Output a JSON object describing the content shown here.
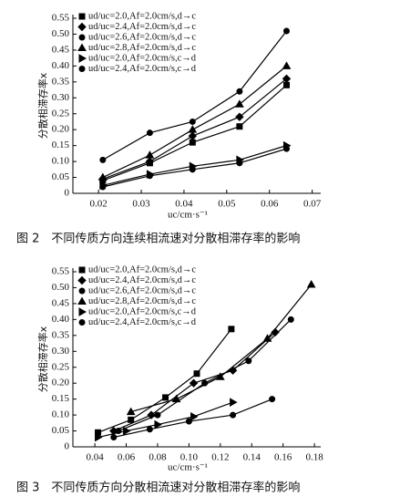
{
  "chart_data": [
    {
      "type": "line",
      "caption": "图 2　不同传质方向连续相流速对分散相滞存率的影响",
      "xlabel": "uc/cm·s⁻¹",
      "ylabel": "分散相滞存率x",
      "xlim": [
        0.014,
        0.072
      ],
      "xticks": [
        0.02,
        0.03,
        0.04,
        0.05,
        0.06,
        0.07
      ],
      "ylim": [
        0,
        0.55
      ],
      "yticks": [
        0,
        0.05,
        {
          "value": 0.1,
          "label": "0.10"
        },
        0.15,
        {
          "value": 0.2,
          "label": "0.20"
        },
        0.25,
        {
          "value": 0.3,
          "label": "0.30"
        },
        0.35,
        {
          "value": 0.4,
          "label": "0.40"
        },
        0.45,
        {
          "value": 0.5,
          "label": "0.50"
        },
        0.55
      ],
      "legend": "upper left",
      "x": [
        0.021,
        0.032,
        0.042,
        0.053,
        0.064
      ],
      "series": [
        {
          "name": "ud/uc=2.0,Af=2.0cm/s,d→c",
          "color": "#000000",
          "marker": "square",
          "values": [
            0.04,
            0.095,
            0.16,
            0.21,
            0.34
          ]
        },
        {
          "name": "ud/uc=2.4,Af=2.0cm/s,d→c",
          "color": "#000000",
          "marker": "diamond",
          "values": [
            0.045,
            0.1,
            0.18,
            0.24,
            0.36
          ]
        },
        {
          "name": "ud/uc=2.6,Af=2.0cm/s,d→c",
          "color": "#000000",
          "marker": "circle",
          "values": [
            0.105,
            0.19,
            0.225,
            0.32,
            0.51
          ]
        },
        {
          "name": "ud/uc=2.8,Af=2.0cm/s,d→c",
          "color": "#000000",
          "marker": "triangle",
          "values": [
            0.05,
            0.12,
            0.2,
            0.28,
            0.4
          ]
        },
        {
          "name": "ud/uc=2.0,Af=2.0cm/s,c→d",
          "color": "#000000",
          "marker": "right-triangle",
          "values": [
            0.025,
            0.06,
            0.085,
            0.105,
            0.15
          ]
        },
        {
          "name": "ud/uc=2.4,Af=2.0cm/s,c→d",
          "color": "#000000",
          "marker": "circle",
          "values": [
            0.02,
            0.055,
            0.075,
            0.095,
            0.14
          ]
        }
      ]
    },
    {
      "type": "line",
      "caption": "图 3　不同传质方向分散相流速对分散相滞存率的影响",
      "xlabel": "uc/cm·s⁻¹",
      "ylabel": "分散相滞存率x",
      "xlim": [
        0.026,
        0.184
      ],
      "xticks": [
        0.04,
        0.06,
        0.08,
        {
          "value": 0.1,
          "label": "0.10"
        },
        0.12,
        0.14,
        0.16,
        0.18
      ],
      "ylim": [
        0,
        0.55
      ],
      "yticks": [
        0,
        0.05,
        {
          "value": 0.1,
          "label": "0.10"
        },
        0.15,
        {
          "value": 0.2,
          "label": "0.20"
        },
        0.25,
        {
          "value": 0.3,
          "label": "0.30"
        },
        0.35,
        {
          "value": 0.4,
          "label": "0.40"
        },
        0.45,
        {
          "value": 0.5,
          "label": "0.50"
        },
        0.55
      ],
      "legend": "upper left",
      "series": [
        {
          "name": "ud/uc=2.0,Af=2.0cm/s,d→c",
          "color": "#000000",
          "marker": "square",
          "x": [
            0.042,
            0.063,
            0.085,
            0.105,
            0.127
          ],
          "values": [
            0.045,
            0.085,
            0.155,
            0.23,
            0.37
          ]
        },
        {
          "name": "ud/uc=2.4,Af=2.0cm/s,d→c",
          "color": "#000000",
          "marker": "diamond",
          "x": [
            0.052,
            0.076,
            0.103,
            0.128,
            0.155
          ],
          "values": [
            0.05,
            0.1,
            0.2,
            0.24,
            0.36
          ]
        },
        {
          "name": "ud/uc=2.6,Af=2.0cm/s,d→c",
          "color": "#000000",
          "marker": "circle",
          "x": [
            0.055,
            0.08,
            0.11,
            0.138,
            0.165
          ],
          "values": [
            0.05,
            0.1,
            0.2,
            0.27,
            0.4
          ]
        },
        {
          "name": "ud/uc=2.8,Af=2.0cm/s,d→c",
          "color": "#000000",
          "marker": "triangle",
          "x": [
            0.063,
            0.092,
            0.12,
            0.15,
            0.178
          ],
          "values": [
            0.11,
            0.15,
            0.22,
            0.34,
            0.51
          ]
        },
        {
          "name": "ud/uc=2.0,Af=2.0cm/s,c→d",
          "color": "#000000",
          "marker": "right-triangle",
          "x": [
            0.042,
            0.06,
            0.08,
            0.103,
            0.128
          ],
          "values": [
            0.03,
            0.05,
            0.07,
            0.095,
            0.14
          ]
        },
        {
          "name": "ud/uc=2.4,Af=2.0cm/s,c→d",
          "color": "#000000",
          "marker": "circle",
          "x": [
            0.052,
            0.075,
            0.1,
            0.128,
            0.153
          ],
          "values": [
            0.03,
            0.055,
            0.08,
            0.1,
            0.15
          ]
        }
      ]
    }
  ]
}
